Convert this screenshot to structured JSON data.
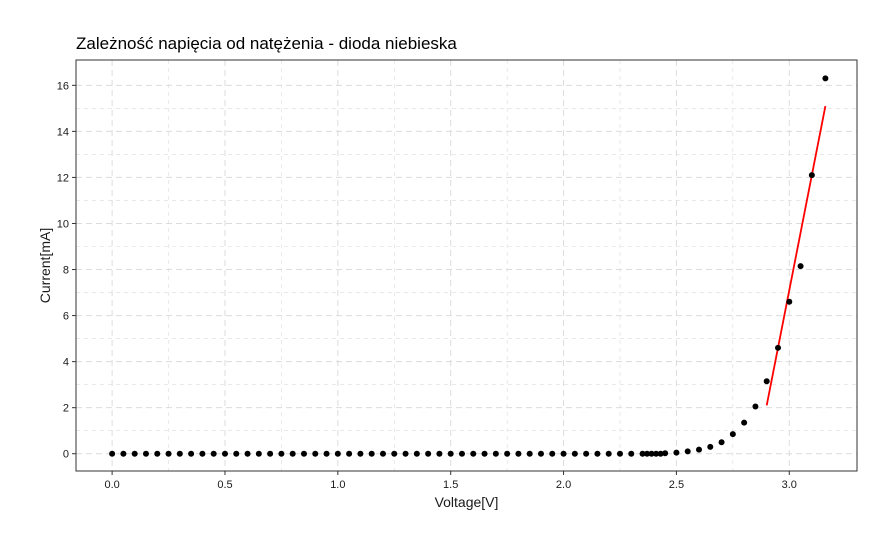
{
  "chart_data": {
    "type": "scatter",
    "title": "Zależność napięcia od natężenia - dioda niebieska",
    "xlabel": "Voltage[V]",
    "ylabel": "Current[mA]",
    "xlim": [
      -0.16,
      3.3
    ],
    "ylim": [
      -0.75,
      17.1
    ],
    "x_ticks": [
      0.0,
      0.5,
      1.0,
      1.5,
      2.0,
      2.5,
      3.0
    ],
    "x_tick_labels": [
      "0.0",
      "0.5",
      "1.0",
      "1.5",
      "2.0",
      "2.5",
      "3.0"
    ],
    "y_ticks": [
      0,
      2,
      4,
      6,
      8,
      10,
      12,
      14,
      16
    ],
    "y_tick_labels": [
      "0",
      "2",
      "4",
      "6",
      "8",
      "10",
      "12",
      "14",
      "16"
    ],
    "grid": true,
    "colors": {
      "points": "#000000",
      "fit_line": "#ff0000",
      "grid": "#dcdcdc",
      "panel_border": "#333333"
    },
    "points": {
      "x": [
        0.0,
        0.05,
        0.1,
        0.15,
        0.2,
        0.25,
        0.3,
        0.35,
        0.4,
        0.45,
        0.5,
        0.55,
        0.6,
        0.65,
        0.7,
        0.75,
        0.8,
        0.85,
        0.9,
        0.95,
        1.0,
        1.05,
        1.1,
        1.15,
        1.2,
        1.25,
        1.3,
        1.35,
        1.4,
        1.45,
        1.5,
        1.55,
        1.6,
        1.65,
        1.7,
        1.75,
        1.8,
        1.85,
        1.9,
        1.95,
        2.0,
        2.05,
        2.1,
        2.15,
        2.2,
        2.25,
        2.3,
        2.35,
        2.37,
        2.39,
        2.41,
        2.43,
        2.45,
        2.5,
        2.55,
        2.6,
        2.65,
        2.7,
        2.75,
        2.8,
        2.85,
        2.9,
        2.95,
        3.0,
        3.05,
        3.1,
        3.16
      ],
      "y": [
        0,
        0,
        0,
        0,
        0,
        0,
        0,
        0,
        0,
        0,
        0,
        0,
        0,
        0,
        0,
        0,
        0,
        0,
        0,
        0,
        0,
        0,
        0,
        0,
        0,
        0,
        0,
        0,
        0,
        0,
        0,
        0,
        0,
        0,
        0,
        0,
        0,
        0,
        0,
        0,
        0,
        0,
        0,
        0,
        0,
        0,
        0,
        0,
        0,
        0,
        0,
        0,
        0.02,
        0.05,
        0.1,
        0.18,
        0.3,
        0.5,
        0.85,
        1.35,
        2.05,
        3.15,
        4.6,
        6.6,
        8.15,
        12.1,
        16.3
      ]
    },
    "fit_line": {
      "x": [
        2.9,
        3.16
      ],
      "y": [
        2.1,
        15.1
      ]
    }
  }
}
